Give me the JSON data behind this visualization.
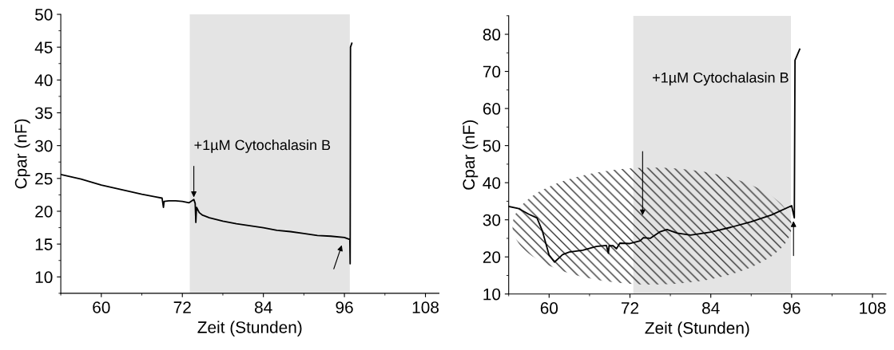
{
  "chart_data": [
    {
      "type": "line",
      "xlabel": "Zeit (Stunden)",
      "ylabel": "Cpar (nF)",
      "xlim": [
        54,
        110
      ],
      "xticks": [
        60,
        72,
        84,
        96,
        108
      ],
      "ylim": [
        7.5,
        50
      ],
      "yticks": [
        10,
        15,
        20,
        25,
        30,
        35,
        40,
        45,
        50
      ],
      "grid": false,
      "legend": false,
      "series": [
        {
          "color": "#000000",
          "x": [
            54,
            57,
            60,
            63,
            66,
            68,
            69,
            69.2,
            69.3,
            70,
            71,
            72,
            73,
            73.7,
            73.9,
            74,
            74.1,
            74.5,
            75,
            76,
            78,
            80,
            84,
            86,
            88,
            90,
            92,
            94,
            96,
            96.8,
            96.85,
            96.9,
            97.1
          ],
          "values": [
            25.6,
            24.9,
            24.0,
            23.3,
            22.6,
            22.2,
            22.0,
            20.6,
            21.5,
            21.6,
            21.6,
            21.5,
            21.3,
            21.8,
            21.2,
            18.3,
            20.6,
            19.8,
            19.4,
            19.0,
            18.5,
            18.1,
            17.5,
            17.1,
            16.9,
            16.6,
            16.3,
            16.2,
            16.0,
            15.7,
            12.0,
            45.0,
            45.6
          ]
        }
      ],
      "bands": [
        {
          "axis": "x",
          "from": 73.1,
          "to": 96.8,
          "color": "#e4e4e4"
        }
      ],
      "annotations": [
        {
          "text": "+1µM Cytochalasin B",
          "x": 73.7,
          "y": 21.8
        }
      ]
    },
    {
      "type": "line",
      "xlabel": "Zeit (Stunden)",
      "ylabel": "Cpar (nF)",
      "xlim": [
        54,
        110
      ],
      "xticks": [
        60,
        72,
        84,
        96,
        108
      ],
      "ylim": [
        10,
        85
      ],
      "yticks": [
        10,
        20,
        30,
        40,
        50,
        60,
        70,
        80
      ],
      "grid": false,
      "legend": false,
      "series": [
        {
          "color": "#000000",
          "x": [
            54,
            55.5,
            57,
            58.2,
            59,
            60,
            60.8,
            62,
            63,
            65,
            67,
            68.5,
            68.8,
            68.9,
            69.5,
            70,
            70.5,
            72,
            73.5,
            74,
            75,
            76.5,
            77.5,
            79,
            81,
            84,
            87,
            90,
            93,
            96,
            96.4,
            96.5,
            97.2
          ],
          "values": [
            33.6,
            33.0,
            31.5,
            30.5,
            27,
            20.5,
            18.6,
            20.6,
            21.3,
            21.8,
            22.8,
            23.1,
            21,
            23,
            23,
            22.2,
            23.7,
            23.6,
            24.3,
            25.2,
            25.0,
            26.8,
            27.4,
            26.4,
            25.9,
            26.7,
            28.0,
            29.5,
            31.3,
            33.8,
            30.5,
            73,
            76
          ]
        }
      ],
      "bands": [
        {
          "axis": "x",
          "from": 72.5,
          "to": 95.9,
          "color": "#e4e4e4"
        }
      ],
      "annotations": [
        "+1µM Cytochalasin B"
      ]
    }
  ]
}
